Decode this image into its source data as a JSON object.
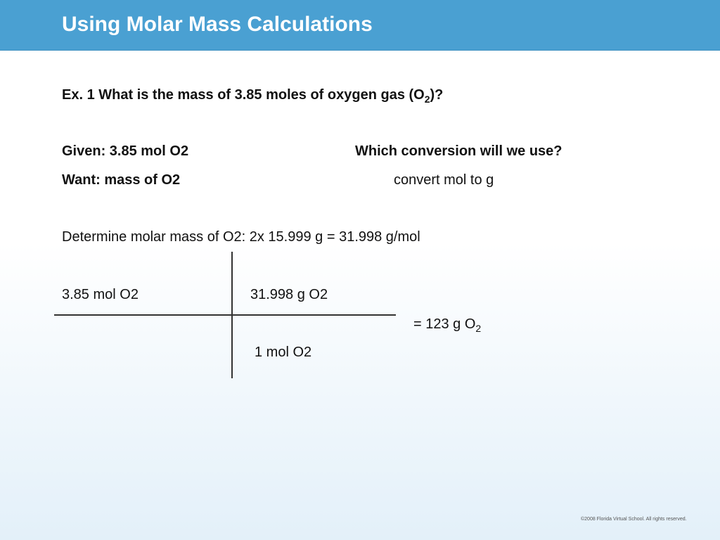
{
  "header": {
    "title": "Using Molar Mass Calculations"
  },
  "question": {
    "text": "Ex. 1 What is the mass of 3.85 moles of oxygen gas (O",
    "subscript": "2",
    "after": ")?"
  },
  "given": "Given:  3.85 mol O2",
  "want": "Want: mass of O2",
  "conversion_question": "Which conversion will we use?",
  "conversion_answer": "convert mol to g",
  "molar_mass": "Determine molar mass of O2:   2x 15.999 g = 31.998 g/mol",
  "factor": {
    "top_left": "3.85 mol O2",
    "top_right": "31.998 g O2",
    "bottom_right": "1 mol O2"
  },
  "result": {
    "text": "=   123 g O",
    "subscript": "2"
  },
  "footer": "©2008 Florida Virtual School. All rights reserved."
}
